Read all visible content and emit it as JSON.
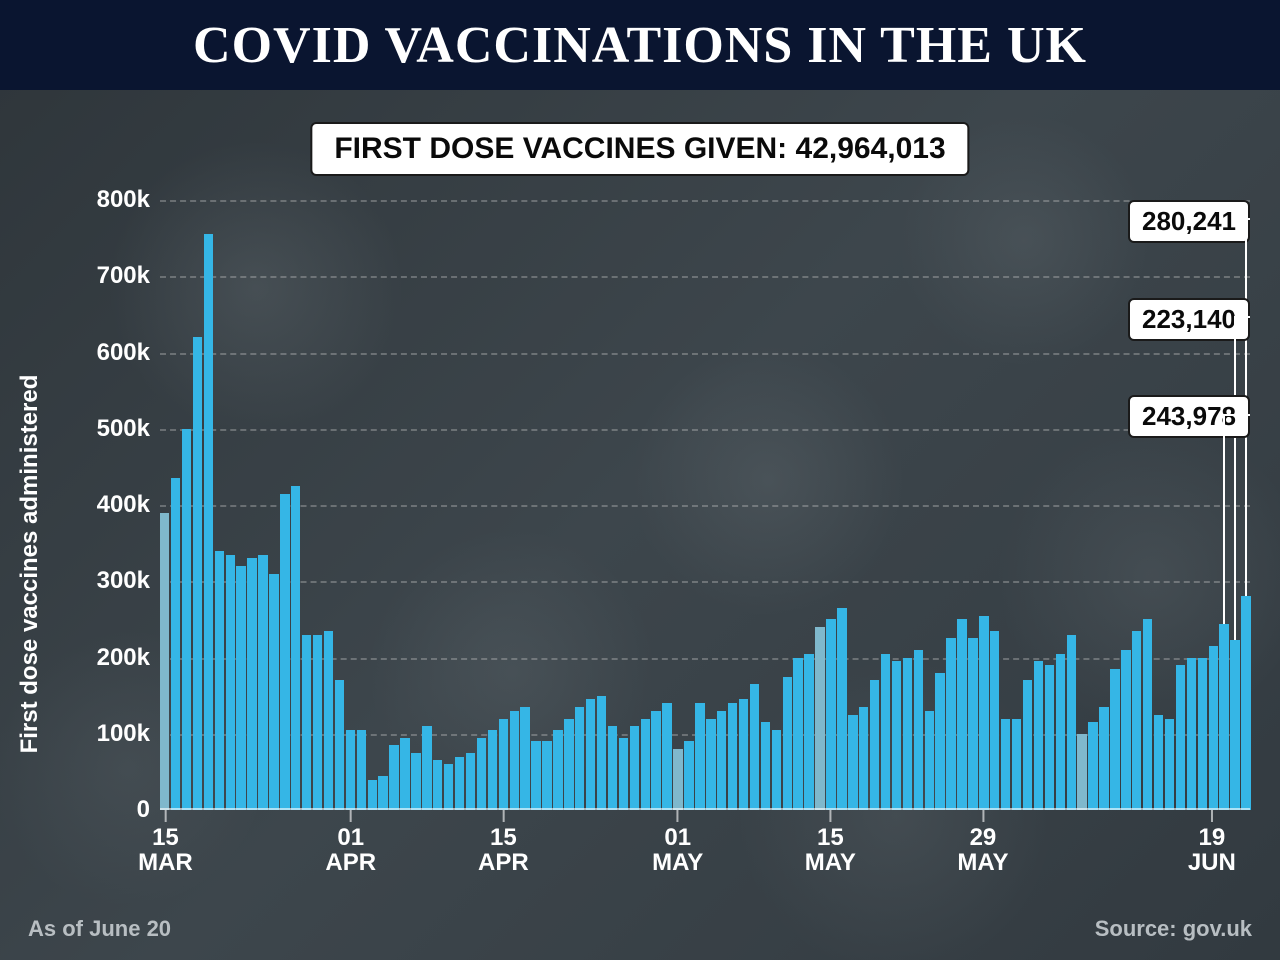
{
  "header": {
    "title": "COVID VACCINATIONS IN THE UK",
    "bg_color": "#0a1530",
    "text_color": "#ffffff",
    "font_size": 52
  },
  "subtitle": {
    "text": "FIRST DOSE VACCINES GIVEN: 42,964,013",
    "bg_color": "#ffffff",
    "border_color": "#1a1a1a",
    "font_size": 30
  },
  "chart": {
    "type": "bar",
    "ylabel": "First dose vaccines administered",
    "label_color": "#ffffff",
    "label_fontsize": 24,
    "ylim": [
      0,
      800000
    ],
    "ytick_step": 100000,
    "ytick_labels": [
      "0",
      "100k",
      "200k",
      "300k",
      "400k",
      "500k",
      "600k",
      "700k",
      "800k"
    ],
    "grid_color": "rgba(200,200,200,0.35)",
    "bar_color": "#35b6e6",
    "bar_color_alt": "#7fb8cc",
    "background_color": "#3a4248",
    "values": [
      390000,
      435000,
      500000,
      620000,
      755000,
      340000,
      335000,
      320000,
      330000,
      335000,
      310000,
      415000,
      425000,
      230000,
      230000,
      235000,
      170000,
      105000,
      105000,
      40000,
      45000,
      85000,
      95000,
      75000,
      110000,
      65000,
      60000,
      70000,
      75000,
      95000,
      105000,
      120000,
      130000,
      135000,
      90000,
      90000,
      105000,
      120000,
      135000,
      145000,
      150000,
      110000,
      95000,
      110000,
      120000,
      130000,
      140000,
      80000,
      90000,
      140000,
      120000,
      130000,
      140000,
      145000,
      165000,
      115000,
      105000,
      175000,
      200000,
      205000,
      240000,
      250000,
      265000,
      125000,
      135000,
      170000,
      205000,
      195000,
      200000,
      210000,
      130000,
      180000,
      225000,
      250000,
      225000,
      255000,
      235000,
      120000,
      120000,
      170000,
      195000,
      190000,
      205000,
      230000,
      100000,
      115000,
      135000,
      185000,
      210000,
      235000,
      250000,
      125000,
      120000,
      190000,
      200000,
      200000,
      215000,
      243978,
      223140,
      280241
    ],
    "alt_indices": [
      0,
      47,
      60,
      84
    ],
    "x_ticks": [
      {
        "index": 0,
        "day": "15",
        "month": "MAR"
      },
      {
        "index": 17,
        "day": "01",
        "month": "APR"
      },
      {
        "index": 31,
        "day": "15",
        "month": "APR"
      },
      {
        "index": 47,
        "day": "01",
        "month": "MAY"
      },
      {
        "index": 61,
        "day": "15",
        "month": "MAY"
      },
      {
        "index": 75,
        "day": "29",
        "month": "MAY"
      },
      {
        "index": 96,
        "day": "19",
        "month": "JUN"
      }
    ],
    "callouts": [
      {
        "value": "280,241",
        "bar_index": 99,
        "top_pct": 0
      },
      {
        "value": "223,140",
        "bar_index": 98,
        "top_pct": 16
      },
      {
        "value": "243,978",
        "bar_index": 97,
        "top_pct": 32
      }
    ]
  },
  "footer": {
    "left": "As of June 20",
    "right": "Source: gov.uk",
    "color": "#b8bec2",
    "font_size": 22
  }
}
